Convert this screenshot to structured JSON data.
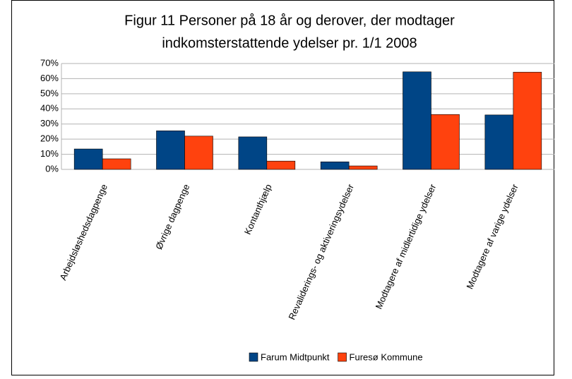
{
  "chart_data": {
    "type": "bar",
    "title": "Figur 11 Personer på 18 år og derover, der modtager indkomsterstattende ydelser pr. 1/1 2008",
    "title_lines": [
      "Figur 11 Personer på 18 år og derover, der modtager",
      "indkomsterstattende ydelser pr. 1/1 2008"
    ],
    "categories": [
      "Arbejdsløshedsdagpenge",
      "Øvrige dagpenge",
      "Kontanthjælp",
      "Revaliderings- og aktiveringsydelser",
      "Modtagere af midlertidige ydelser",
      "Modtagere af varige ydelser"
    ],
    "series": [
      {
        "name": "Farum Midtpunkt",
        "color": "#004586",
        "values": [
          13.5,
          25.5,
          21.5,
          5,
          64.5,
          36
        ]
      },
      {
        "name": "Furesø Kommune",
        "color": "#ff420e",
        "values": [
          7,
          22,
          5.5,
          2.3,
          36.3,
          64.3
        ]
      }
    ],
    "ylim": [
      0,
      70
    ],
    "yticks": [
      {
        "value": 0,
        "label": "0%"
      },
      {
        "value": 10,
        "label": "10%"
      },
      {
        "value": 20,
        "label": "20%"
      },
      {
        "value": 30,
        "label": "30%"
      },
      {
        "value": 40,
        "label": "40%"
      },
      {
        "value": 50,
        "label": "50%"
      },
      {
        "value": 60,
        "label": "60%"
      },
      {
        "value": 70,
        "label": "70%"
      }
    ],
    "grid": true,
    "legend": "bottom"
  }
}
